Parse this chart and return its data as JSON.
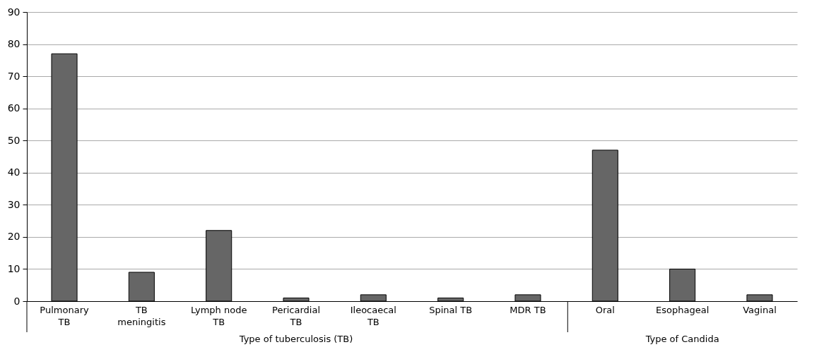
{
  "chart_data": {
    "type": "bar",
    "categories": [
      "Pulmonary TB",
      "TB meningitis",
      "Lymph node TB",
      "Pericardial TB",
      "Ileocaecal TB",
      "Spinal TB",
      "MDR TB",
      "Oral",
      "Esophageal",
      "Vaginal"
    ],
    "values": [
      77,
      9,
      22,
      1,
      2,
      1,
      2,
      47,
      10,
      2
    ],
    "color": "#666666",
    "ylim": [
      0,
      90
    ],
    "yticks": [
      0,
      10,
      20,
      30,
      40,
      50,
      60,
      70,
      80,
      90
    ],
    "grid": "y",
    "annotations": [
      "Type of tuberculosis (TB)",
      "Type of Candida"
    ]
  }
}
